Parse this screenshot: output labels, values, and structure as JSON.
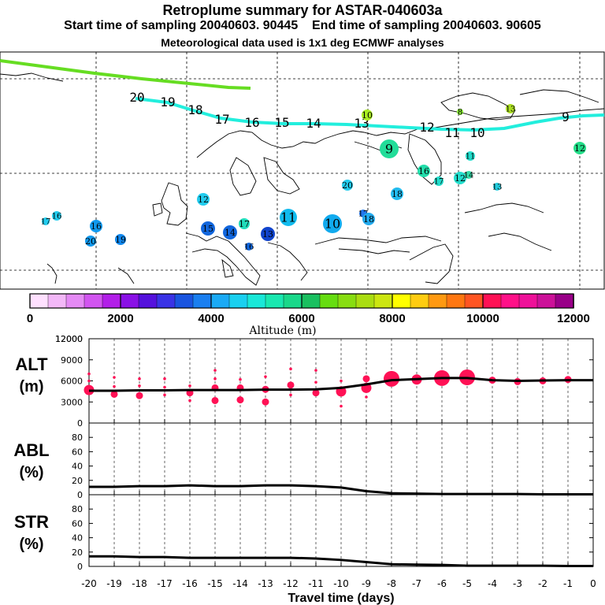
{
  "header": {
    "title": "Retroplume summary for ASTAR-040603a",
    "subtitle_start": "Start time of sampling 20040603. 90445",
    "subtitle_end": "End time of sampling 20040603. 90605",
    "subtitle_met": "Meteorological data used is 1x1 deg ECMWF analyses"
  },
  "map": {
    "track_colors": {
      "green": "#66dd22",
      "cyan": "#22eedd"
    },
    "track_labels": [
      "20",
      "19",
      "18",
      "17",
      "16",
      "15",
      "14",
      "13",
      "12",
      "11",
      "10",
      "9"
    ],
    "clusters": [
      {
        "label": "10",
        "color": "#aaee22"
      },
      {
        "label": "8",
        "color": "#88ee33"
      },
      {
        "label": "13",
        "color": "#aadd22"
      },
      {
        "label": "9",
        "color": "#22dd99"
      },
      {
        "label": "12",
        "color": "#22dd88"
      },
      {
        "label": "11",
        "color": "#22ddcc"
      },
      {
        "label": "16",
        "color": "#22ddaa"
      },
      {
        "label": "17",
        "color": "#22ddcc"
      },
      {
        "label": "12",
        "color": "#22ddcc"
      },
      {
        "label": "14",
        "color": "#33ddaa"
      },
      {
        "label": "13",
        "color": "#22ccdd"
      },
      {
        "label": "20",
        "color": "#22ccee"
      },
      {
        "label": "18",
        "color": "#22bbee"
      },
      {
        "label": "12",
        "color": "#22ccee"
      },
      {
        "label": "11",
        "color": "#11bbee"
      },
      {
        "label": "10",
        "color": "#11aaee"
      },
      {
        "label": "17",
        "color": "#2277ee"
      },
      {
        "label": "18",
        "color": "#22aaee"
      },
      {
        "label": "15",
        "color": "#1166dd"
      },
      {
        "label": "14",
        "color": "#1166dd"
      },
      {
        "label": "17",
        "color": "#22ddbb"
      },
      {
        "label": "13",
        "color": "#1144cc"
      },
      {
        "label": "16",
        "color": "#1166dd"
      },
      {
        "label": "17",
        "color": "#22ccee"
      },
      {
        "label": "16",
        "color": "#22ccee"
      },
      {
        "label": "16",
        "color": "#1199ee"
      },
      {
        "label": "20",
        "color": "#1199ee"
      },
      {
        "label": "19",
        "color": "#1188ee"
      }
    ]
  },
  "colorbar": {
    "tick_labels": [
      "0",
      "2000",
      "4000",
      "6000",
      "8000",
      "10000",
      "12000"
    ],
    "axis_label": "Altitude (m)",
    "colors": [
      "#ffe0ff",
      "#f3b8f8",
      "#e58af5",
      "#d255f0",
      "#b21fe8",
      "#8a11e6",
      "#5511dd",
      "#3a33e6",
      "#1a55e0",
      "#1a7ff0",
      "#1aaaf5",
      "#1ad0f0",
      "#1ae8d8",
      "#1ae8b0",
      "#1ad88a",
      "#1ac060",
      "#66dd11",
      "#88dd11",
      "#aadd11",
      "#cce611",
      "#ffff00",
      "#ffcc11",
      "#ff9911",
      "#ff7711",
      "#ff5522",
      "#ff1155",
      "#ff1188",
      "#ee1199",
      "#cc1199",
      "#990088"
    ]
  },
  "chart_data": [
    {
      "type": "line",
      "panel": "ALT",
      "ylabel": "ALT (m)",
      "ylim": [
        0,
        12000
      ],
      "yticks": [
        0,
        3000,
        6000,
        9000,
        12000
      ],
      "x": [
        -20,
        -19,
        -18,
        -17,
        -16,
        -15,
        -14,
        -13,
        -12,
        -11,
        -10,
        -9,
        -8,
        -7,
        -6,
        -5,
        -4,
        -3,
        -2,
        -1,
        0
      ],
      "values": [
        4600,
        4600,
        4650,
        4650,
        4700,
        4700,
        4700,
        4750,
        4750,
        4800,
        5000,
        5500,
        6100,
        6250,
        6400,
        6400,
        6100,
        6000,
        6050,
        6100,
        6100
      ],
      "dot_color": "#ff1155",
      "bubbles": [
        {
          "x": -20,
          "y": 4700,
          "s": 3
        },
        {
          "x": -20,
          "y": 6000,
          "s": 1
        },
        {
          "x": -20,
          "y": 7000,
          "s": 1
        },
        {
          "x": -19,
          "y": 4100,
          "s": 2
        },
        {
          "x": -19,
          "y": 5200,
          "s": 1
        },
        {
          "x": -19,
          "y": 6500,
          "s": 1
        },
        {
          "x": -18,
          "y": 3900,
          "s": 2
        },
        {
          "x": -18,
          "y": 5300,
          "s": 1
        },
        {
          "x": -18,
          "y": 6300,
          "s": 1
        },
        {
          "x": -17,
          "y": 4000,
          "s": 1
        },
        {
          "x": -17,
          "y": 5100,
          "s": 1
        },
        {
          "x": -17,
          "y": 6300,
          "s": 1
        },
        {
          "x": -16,
          "y": 3200,
          "s": 1
        },
        {
          "x": -16,
          "y": 4300,
          "s": 2
        },
        {
          "x": -16,
          "y": 5300,
          "s": 1
        },
        {
          "x": -15,
          "y": 3200,
          "s": 2
        },
        {
          "x": -15,
          "y": 5000,
          "s": 2
        },
        {
          "x": -15,
          "y": 6300,
          "s": 1
        },
        {
          "x": -15,
          "y": 7500,
          "s": 1
        },
        {
          "x": -14,
          "y": 3300,
          "s": 2
        },
        {
          "x": -14,
          "y": 5000,
          "s": 2
        },
        {
          "x": -14,
          "y": 6200,
          "s": 1
        },
        {
          "x": -13,
          "y": 3000,
          "s": 2
        },
        {
          "x": -13,
          "y": 4800,
          "s": 2
        },
        {
          "x": -13,
          "y": 6600,
          "s": 1
        },
        {
          "x": -12,
          "y": 4000,
          "s": 1
        },
        {
          "x": -12,
          "y": 5400,
          "s": 2
        },
        {
          "x": -12,
          "y": 7700,
          "s": 1
        },
        {
          "x": -11,
          "y": 4300,
          "s": 2
        },
        {
          "x": -11,
          "y": 5800,
          "s": 1
        },
        {
          "x": -11,
          "y": 7500,
          "s": 1
        },
        {
          "x": -10,
          "y": 2400,
          "s": 1
        },
        {
          "x": -10,
          "y": 4500,
          "s": 3
        },
        {
          "x": -10,
          "y": 6000,
          "s": 1
        },
        {
          "x": -9,
          "y": 3700,
          "s": 1
        },
        {
          "x": -9,
          "y": 5000,
          "s": 3
        },
        {
          "x": -9,
          "y": 6300,
          "s": 2
        },
        {
          "x": -8,
          "y": 6300,
          "s": 4
        },
        {
          "x": -7,
          "y": 6200,
          "s": 3
        },
        {
          "x": -6,
          "y": 6400,
          "s": 4
        },
        {
          "x": -5,
          "y": 6500,
          "s": 4
        },
        {
          "x": -4,
          "y": 6100,
          "s": 2
        },
        {
          "x": -3,
          "y": 5900,
          "s": 2
        },
        {
          "x": -2,
          "y": 6000,
          "s": 2
        },
        {
          "x": -1,
          "y": 6200,
          "s": 2
        }
      ]
    },
    {
      "type": "line",
      "panel": "ABL",
      "ylabel": "ABL (%)",
      "ylim": [
        0,
        100
      ],
      "yticks": [
        0,
        20,
        40,
        60,
        80
      ],
      "x": [
        -20,
        -19,
        -18,
        -17,
        -16,
        -15,
        -14,
        -13,
        -12,
        -11,
        -10,
        -9,
        -8,
        -7,
        -6,
        -5,
        -4,
        -3,
        -2,
        -1,
        0
      ],
      "values": [
        11,
        11,
        12,
        12,
        13,
        12,
        12,
        13,
        13,
        12,
        10,
        5,
        2,
        1.5,
        1,
        1,
        1,
        1,
        0.5,
        0.5,
        0.5
      ]
    },
    {
      "type": "line",
      "panel": "STR",
      "ylabel": "STR (%)",
      "ylim": [
        0,
        100
      ],
      "yticks": [
        0,
        20,
        40,
        60,
        80
      ],
      "x": [
        -20,
        -19,
        -18,
        -17,
        -16,
        -15,
        -14,
        -13,
        -12,
        -11,
        -10,
        -9,
        -8,
        -7,
        -6,
        -5,
        -4,
        -3,
        -2,
        -1,
        0
      ],
      "values": [
        14,
        14,
        13,
        13,
        12,
        12,
        12,
        12,
        12,
        11,
        9,
        6,
        3,
        2.5,
        2,
        1,
        1,
        1,
        1,
        0.5,
        0.5
      ]
    }
  ],
  "xaxis": {
    "label": "Travel time (days)",
    "tick_labels": [
      "-20",
      "-19",
      "-18",
      "-17",
      "-16",
      "-15",
      "-14",
      "-13",
      "-12",
      "-11",
      "-10",
      "-9",
      "-8",
      "-7",
      "-6",
      "-5",
      "-4",
      "-3",
      "-2",
      "-1",
      "0"
    ]
  }
}
